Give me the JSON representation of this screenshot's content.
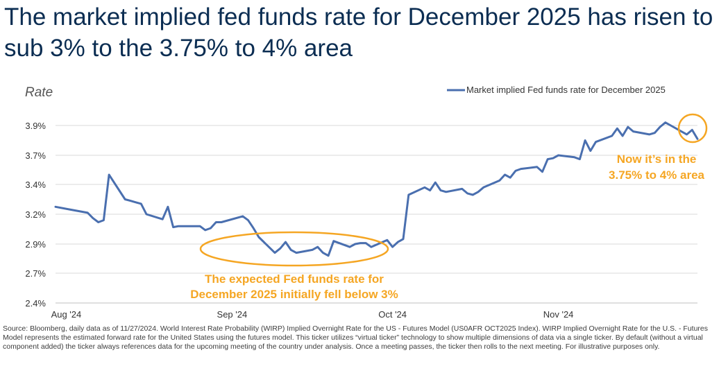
{
  "title": "The market implied fed funds rate for December 2025 has risen to sub 3% to the 3.75% to 4% area",
  "colors": {
    "line": "#4a6faf",
    "annotation": "#f5a623",
    "grid": "#d9d9d9",
    "title": "#0b2d52"
  },
  "chart_data": {
    "type": "line",
    "ylabel": "Rate",
    "ylim": [
      2.4,
      4.0
    ],
    "yticks": [
      2.4,
      2.7,
      2.9,
      3.2,
      3.4,
      3.7,
      3.9
    ],
    "yticklabels": [
      "2.4%",
      "2.7%",
      "2.9%",
      "3.2%",
      "3.4%",
      "3.7%",
      "3.9%"
    ],
    "xlim": [
      "2024-07-30",
      "2024-11-27"
    ],
    "xticks": [
      "2024-08-01",
      "2024-09-01",
      "2024-10-01",
      "2024-11-01"
    ],
    "xticklabels": [
      "Aug '24",
      "Sep '24",
      "Oct '24",
      "Nov '24"
    ],
    "grid": true,
    "legend_position": "top-right",
    "series": [
      {
        "name": "Market implied Fed funds rate for December 2025",
        "points": [
          [
            "2024-07-30",
            3.25
          ],
          [
            "2024-08-02",
            3.23
          ],
          [
            "2024-08-05",
            3.21
          ],
          [
            "2024-08-06",
            3.16
          ],
          [
            "2024-08-07",
            3.12
          ],
          [
            "2024-08-08",
            3.14
          ],
          [
            "2024-08-09",
            3.5
          ],
          [
            "2024-08-12",
            3.3
          ],
          [
            "2024-08-13",
            3.29
          ],
          [
            "2024-08-14",
            3.28
          ],
          [
            "2024-08-15",
            3.27
          ],
          [
            "2024-08-16",
            3.2
          ],
          [
            "2024-08-19",
            3.15
          ],
          [
            "2024-08-20",
            3.25
          ],
          [
            "2024-08-21",
            3.07
          ],
          [
            "2024-08-22",
            3.08
          ],
          [
            "2024-08-23",
            3.08
          ],
          [
            "2024-08-26",
            3.08
          ],
          [
            "2024-08-27",
            3.04
          ],
          [
            "2024-08-28",
            3.06
          ],
          [
            "2024-08-29",
            3.12
          ],
          [
            "2024-08-30",
            3.12
          ],
          [
            "2024-09-03",
            3.18
          ],
          [
            "2024-09-04",
            3.14
          ],
          [
            "2024-09-05",
            3.06
          ],
          [
            "2024-09-06",
            2.97
          ],
          [
            "2024-09-09",
            2.84
          ],
          [
            "2024-09-10",
            2.87
          ],
          [
            "2024-09-11",
            2.92
          ],
          [
            "2024-09-12",
            2.86
          ],
          [
            "2024-09-13",
            2.84
          ],
          [
            "2024-09-16",
            2.86
          ],
          [
            "2024-09-17",
            2.88
          ],
          [
            "2024-09-18",
            2.84
          ],
          [
            "2024-09-19",
            2.82
          ],
          [
            "2024-09-20",
            2.93
          ],
          [
            "2024-09-23",
            2.88
          ],
          [
            "2024-09-24",
            2.9
          ],
          [
            "2024-09-25",
            2.91
          ],
          [
            "2024-09-26",
            2.91
          ],
          [
            "2024-09-27",
            2.88
          ],
          [
            "2024-09-30",
            2.94
          ],
          [
            "2024-10-01",
            2.88
          ],
          [
            "2024-10-02",
            2.92
          ],
          [
            "2024-10-03",
            2.95
          ],
          [
            "2024-10-04",
            3.33
          ],
          [
            "2024-10-07",
            3.38
          ],
          [
            "2024-10-08",
            3.36
          ],
          [
            "2024-10-09",
            3.42
          ],
          [
            "2024-10-10",
            3.36
          ],
          [
            "2024-10-11",
            3.35
          ],
          [
            "2024-10-14",
            3.37
          ],
          [
            "2024-10-15",
            3.34
          ],
          [
            "2024-10-16",
            3.33
          ],
          [
            "2024-10-17",
            3.35
          ],
          [
            "2024-10-18",
            3.38
          ],
          [
            "2024-10-21",
            3.44
          ],
          [
            "2024-10-22",
            3.5
          ],
          [
            "2024-10-23",
            3.47
          ],
          [
            "2024-10-24",
            3.54
          ],
          [
            "2024-10-25",
            3.56
          ],
          [
            "2024-10-28",
            3.58
          ],
          [
            "2024-10-29",
            3.53
          ],
          [
            "2024-10-30",
            3.66
          ],
          [
            "2024-10-31",
            3.67
          ],
          [
            "2024-11-01",
            3.7
          ],
          [
            "2024-11-04",
            3.68
          ],
          [
            "2024-11-05",
            3.66
          ],
          [
            "2024-11-06",
            3.8
          ],
          [
            "2024-11-07",
            3.73
          ],
          [
            "2024-11-08",
            3.79
          ],
          [
            "2024-11-11",
            3.83
          ],
          [
            "2024-11-12",
            3.88
          ],
          [
            "2024-11-13",
            3.83
          ],
          [
            "2024-11-14",
            3.89
          ],
          [
            "2024-11-15",
            3.86
          ],
          [
            "2024-11-18",
            3.84
          ],
          [
            "2024-11-19",
            3.85
          ],
          [
            "2024-11-20",
            3.89
          ],
          [
            "2024-11-21",
            3.92
          ],
          [
            "2024-11-22",
            3.9
          ],
          [
            "2024-11-25",
            3.84
          ],
          [
            "2024-11-26",
            3.87
          ],
          [
            "2024-11-27",
            3.81
          ]
        ]
      }
    ],
    "annotations": [
      {
        "id": "sep-dip",
        "text": [
          "The expected Fed funds rate for",
          "December 2025 initially fell below 3%"
        ]
      },
      {
        "id": "latest",
        "text": [
          "Now it’s in the",
          "3.75% to 4% area"
        ]
      }
    ]
  },
  "source": "Source: Bloomberg, daily data as of 11/27/2024. World Interest Rate Probability (WIRP) Implied Overnight Rate for the US - Futures Model (US0AFR OCT2025 Index). WIRP Implied Overnight Rate for the U.S. - Futures Model represents the estimated forward rate for the United States using the futures model. This ticker utilizes “virtual ticker” technology to show multiple dimensions of data via a single ticker. By default (without a virtual component added) the ticker always references data for the upcoming meeting of the country under analysis. Once a meeting passes, the ticker then rolls to the next meeting. For illustrative purposes only."
}
